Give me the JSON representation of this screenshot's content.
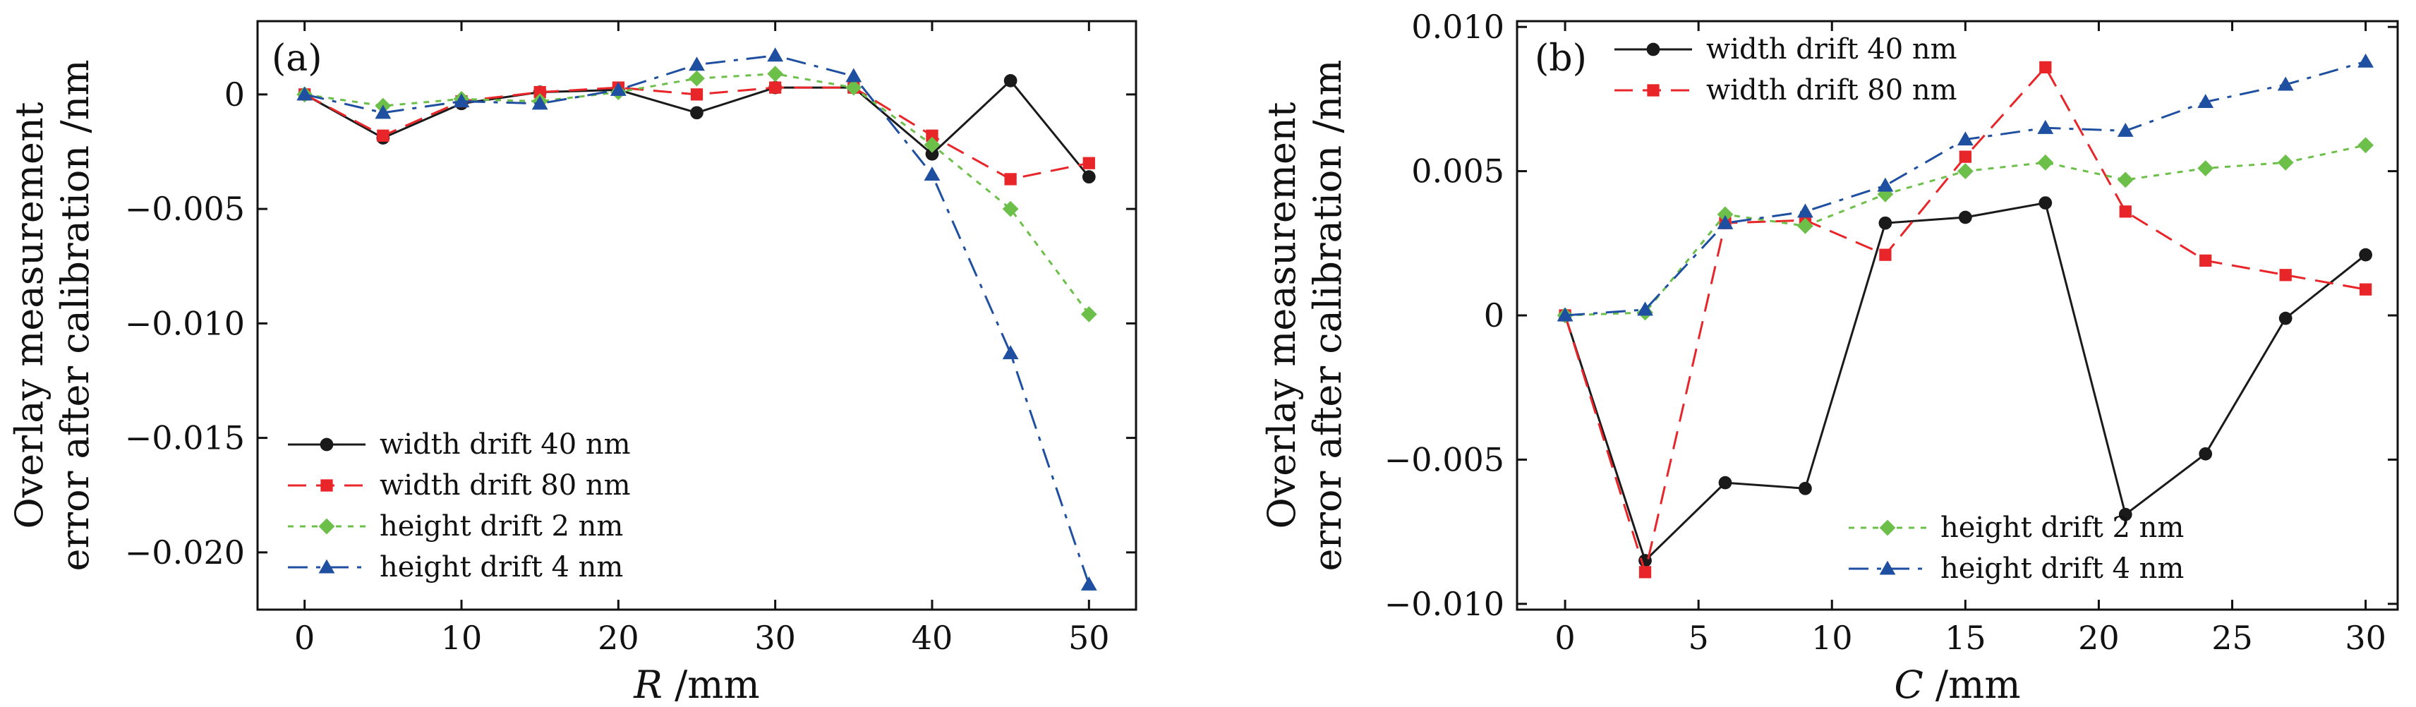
{
  "chart_data": [
    {
      "type": "line",
      "panel_label": "(a)",
      "xlabel_var": "R",
      "xlabel_unit": " /mm",
      "ylabel_line1": "Overlay measurement",
      "ylabel_line2": "error after calibration /nm",
      "xlim": [
        -3,
        53
      ],
      "ylim": [
        -0.0225,
        0.0032
      ],
      "xticks": [
        0,
        10,
        20,
        30,
        40,
        50
      ],
      "xtick_labels": [
        "0",
        "10",
        "20",
        "30",
        "40",
        "50"
      ],
      "yticks": [
        0,
        -0.005,
        -0.01,
        -0.015,
        -0.02
      ],
      "ytick_labels": [
        "0",
        "−0.005",
        "−0.010",
        "−0.015",
        "−0.020"
      ],
      "grid": false,
      "legend_position": "bottom-left",
      "x": [
        0,
        5,
        10,
        15,
        20,
        25,
        30,
        35,
        40,
        45,
        50
      ],
      "series": [
        {
          "name": "width drift 40 nm",
          "color": "#1a1a1a",
          "marker": "circle",
          "dash": "solid",
          "values": [
            0,
            -0.0019,
            -0.0004,
            0.0001,
            0.0002,
            -0.0008,
            0.0003,
            0.0003,
            -0.0026,
            0.0006,
            -0.0036
          ]
        },
        {
          "name": "width drift 80 nm",
          "color": "#e8262a",
          "marker": "square",
          "dash": "dashed",
          "values": [
            0,
            -0.0018,
            -0.0003,
            0.0001,
            0.0003,
            0.0,
            0.0003,
            0.0003,
            -0.0018,
            -0.0037,
            -0.003
          ]
        },
        {
          "name": "height drift 2 nm",
          "color": "#6cc04a",
          "marker": "diamond",
          "dash": "dotted",
          "values": [
            0,
            -0.0005,
            -0.0002,
            -0.0003,
            0.0001,
            0.0007,
            0.0009,
            0.0003,
            -0.0022,
            -0.005,
            -0.0096
          ]
        },
        {
          "name": "height drift 4 nm",
          "color": "#1f4fa0",
          "marker": "triangle",
          "dash": "dashdot",
          "values": [
            0,
            -0.0008,
            -0.0003,
            -0.0004,
            0.0002,
            0.0013,
            0.0017,
            0.0008,
            -0.0035,
            -0.0113,
            -0.0214
          ]
        }
      ]
    },
    {
      "type": "line",
      "panel_label": "(b)",
      "xlabel_var": "C",
      "xlabel_unit": " /mm",
      "ylabel_line1": "Overlay measurement",
      "ylabel_line2": "error after calibration /nm",
      "xlim": [
        -1.8,
        31.2
      ],
      "ylim": [
        -0.0102,
        0.0102
      ],
      "xticks": [
        0,
        5,
        10,
        15,
        20,
        25,
        30
      ],
      "xtick_labels": [
        "0",
        "5",
        "10",
        "15",
        "20",
        "25",
        "30"
      ],
      "yticks": [
        0.01,
        0.005,
        0,
        -0.005,
        -0.01
      ],
      "ytick_labels": [
        "0.010",
        "0.005",
        "0",
        "−0.005",
        "−0.010"
      ],
      "grid": false,
      "legend_position": "top-left and bottom-center",
      "x": [
        0,
        3,
        6,
        9,
        12,
        15,
        18,
        21,
        24,
        27,
        30
      ],
      "series": [
        {
          "name": "width drift 40 nm",
          "color": "#1a1a1a",
          "marker": "circle",
          "dash": "solid",
          "values": [
            0,
            -0.0085,
            -0.0058,
            -0.006,
            0.0032,
            0.0034,
            0.0039,
            -0.0069,
            -0.0048,
            -0.0001,
            0.0021
          ]
        },
        {
          "name": "width drift 80 nm",
          "color": "#e8262a",
          "marker": "square",
          "dash": "dashed",
          "values": [
            0,
            -0.0089,
            0.0032,
            0.0033,
            0.0021,
            0.0055,
            0.0086,
            0.0036,
            0.0019,
            0.0014,
            0.0009
          ]
        },
        {
          "name": "height drift 2 nm",
          "color": "#6cc04a",
          "marker": "diamond",
          "dash": "dotted",
          "values": [
            0,
            0.0001,
            0.0035,
            0.0031,
            0.0042,
            0.005,
            0.0053,
            0.0047,
            0.0051,
            0.0053,
            0.0059
          ]
        },
        {
          "name": "height drift 4 nm",
          "color": "#1f4fa0",
          "marker": "triangle",
          "dash": "dashdot",
          "values": [
            0,
            0.0002,
            0.0032,
            0.0036,
            0.0045,
            0.0061,
            0.0065,
            0.0064,
            0.0074,
            0.008,
            0.0088
          ]
        }
      ]
    }
  ]
}
